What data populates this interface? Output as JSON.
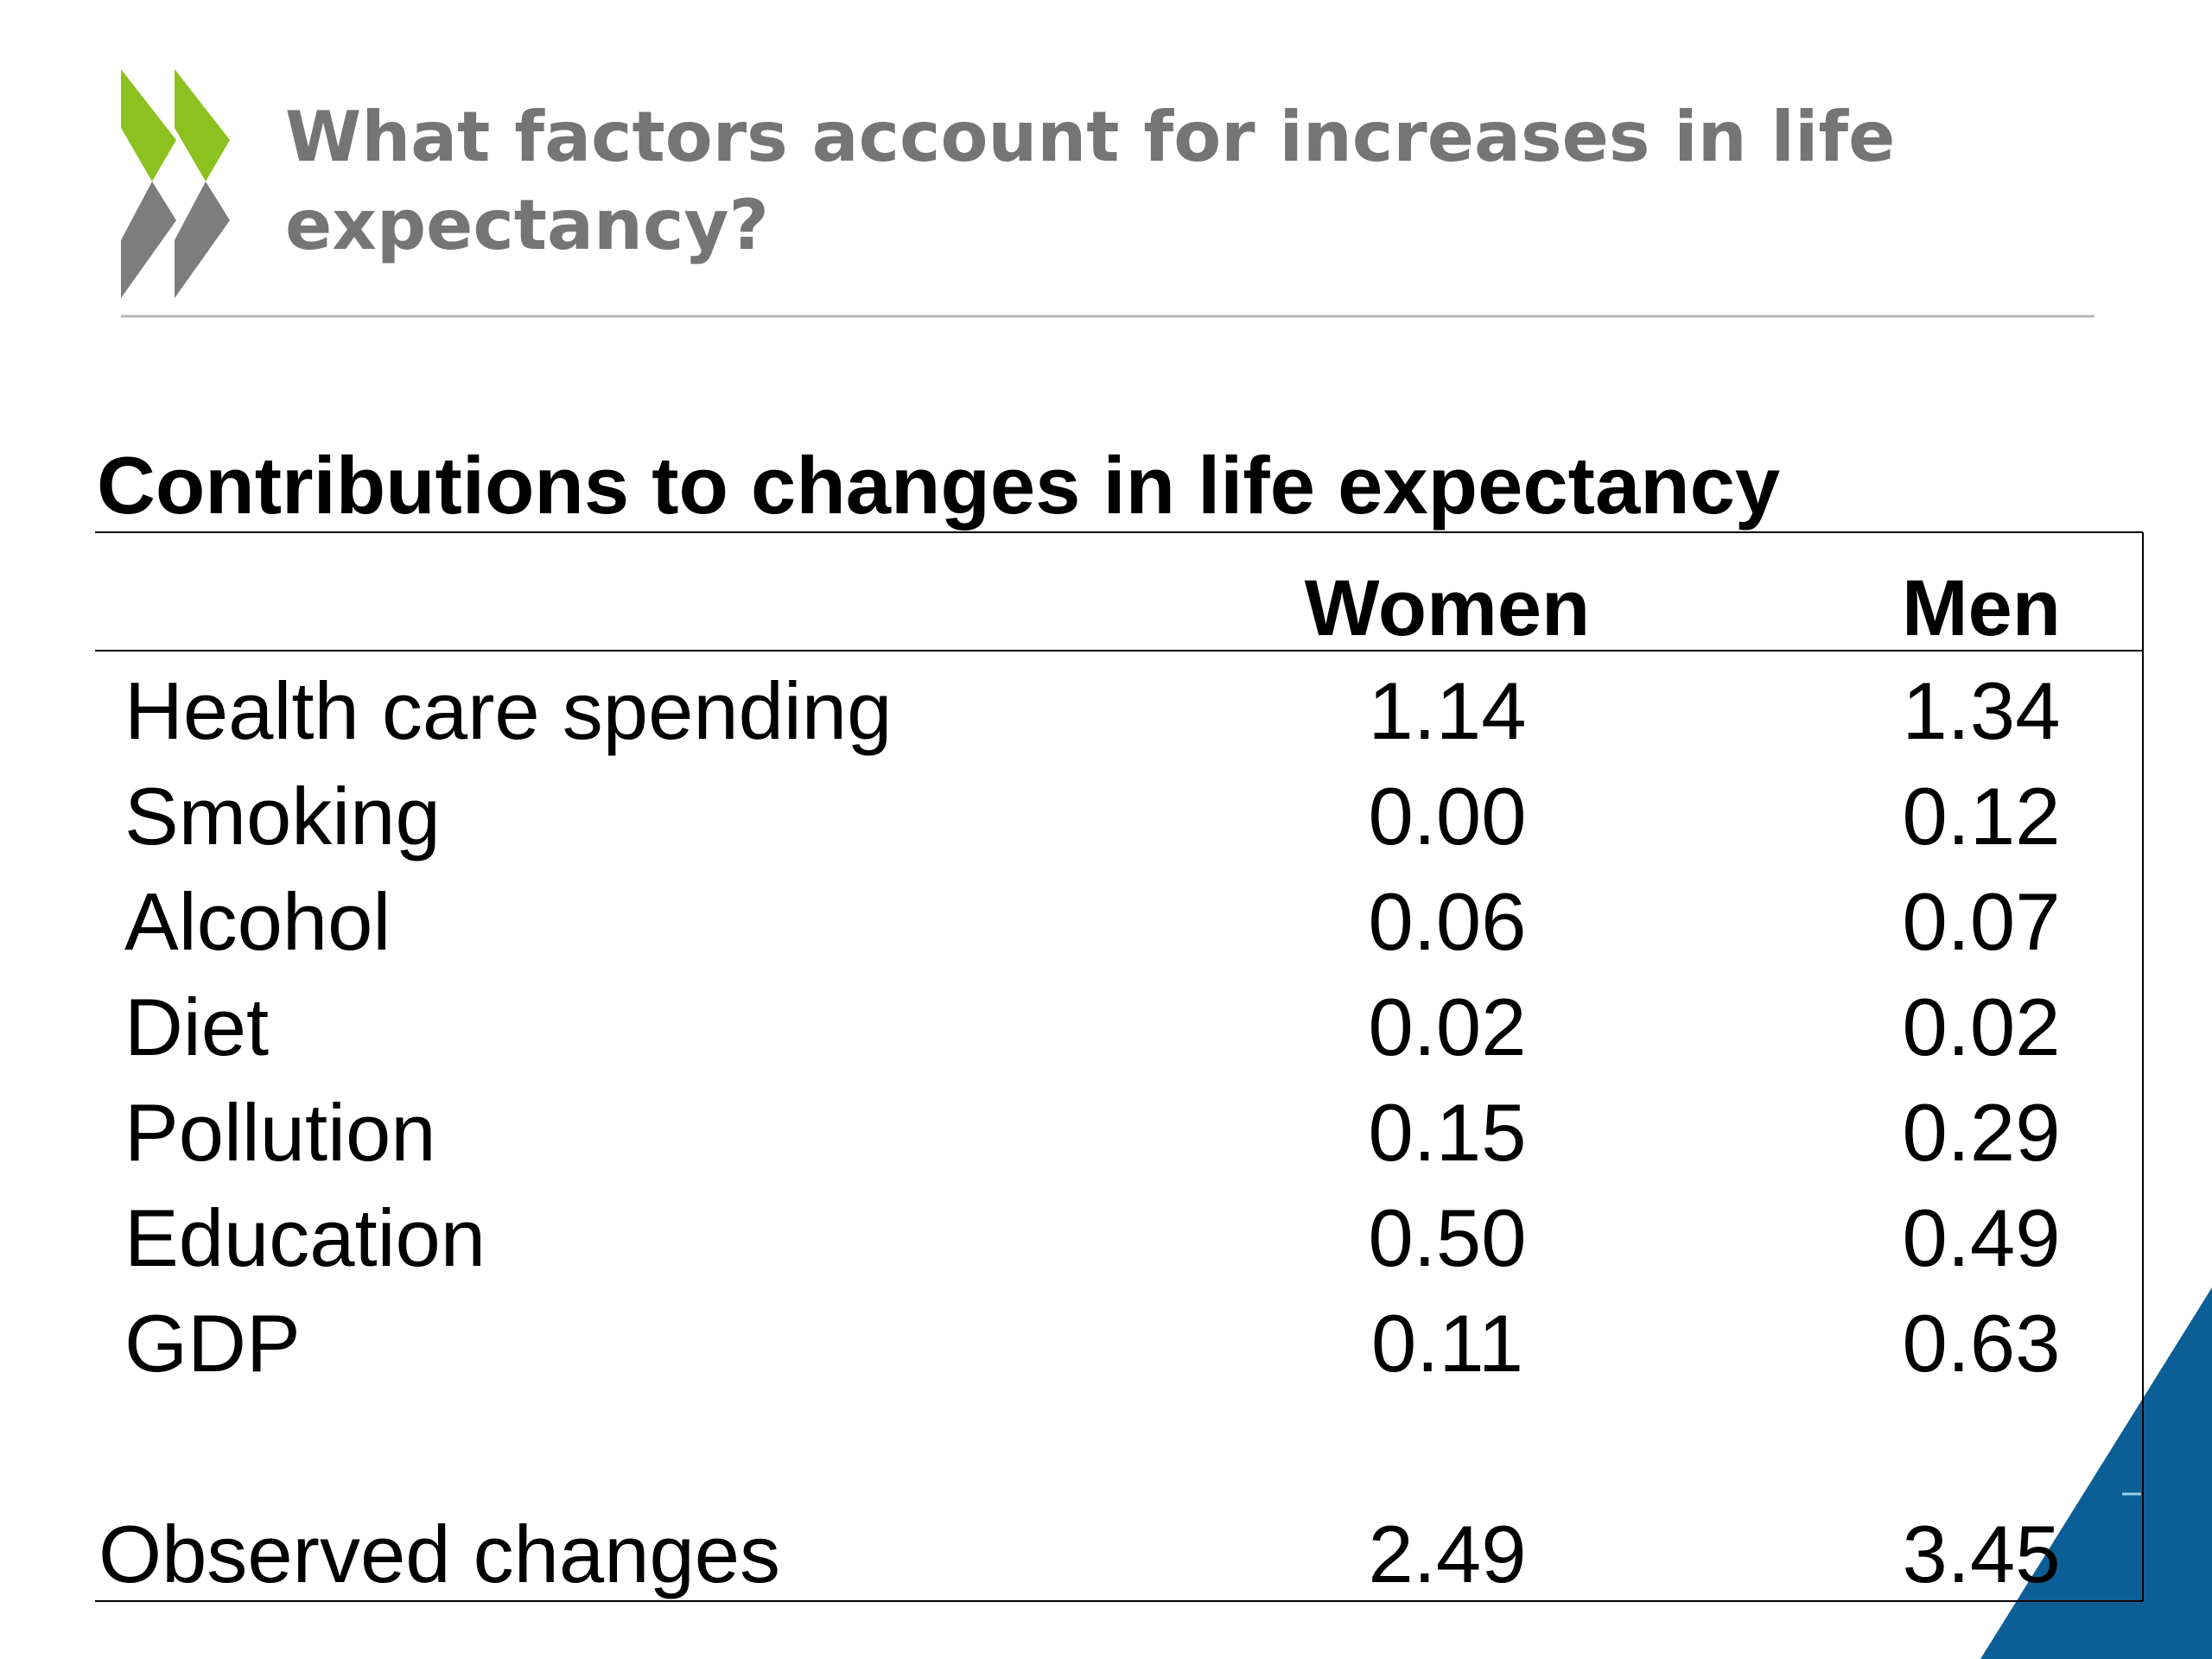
{
  "header": {
    "title": "What factors account for increases in life expectancy?"
  },
  "table": {
    "title": "Contributions to changes in life expectancy",
    "columns": [
      "Women",
      "Men"
    ],
    "rows": [
      {
        "label": "Health care spending",
        "women": "1.14",
        "men": "1.34"
      },
      {
        "label": "Smoking",
        "women": "0.00",
        "men": "0.12"
      },
      {
        "label": "Alcohol",
        "women": "0.06",
        "men": "0.07"
      },
      {
        "label": "Diet",
        "women": "0.02",
        "men": "0.02"
      },
      {
        "label": "Pollution",
        "women": "0.15",
        "men": "0.29"
      },
      {
        "label": "Education",
        "women": "0.50",
        "men": "0.49"
      },
      {
        "label": "GDP",
        "women": "0.11",
        "men": "0.63"
      }
    ],
    "total": {
      "label": "Observed changes",
      "women": "2.49",
      "men": "3.45"
    }
  },
  "colors": {
    "logo_green": "#8cc11f",
    "logo_grey": "#7d7d7d",
    "accent_blue": "#0b5f96",
    "title_grey": "#757575"
  }
}
